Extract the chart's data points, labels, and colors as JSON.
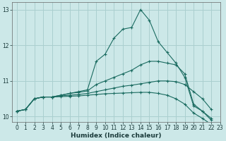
{
  "title": "",
  "xlabel": "Humidex (Indice chaleur)",
  "ylabel": "",
  "bg_color": "#cce8e8",
  "grid_color": "#aacfcf",
  "line_color": "#1a6b60",
  "xlim": [
    -0.5,
    23
  ],
  "ylim": [
    9.85,
    13.2
  ],
  "yticks": [
    10,
    11,
    12,
    13
  ],
  "xticks": [
    0,
    1,
    2,
    3,
    4,
    5,
    6,
    7,
    8,
    9,
    10,
    11,
    12,
    13,
    14,
    15,
    16,
    17,
    18,
    19,
    20,
    21,
    22,
    23
  ],
  "series": [
    {
      "x": [
        0,
        1,
        2,
        3,
        4,
        5,
        6,
        7,
        8,
        9,
        10,
        11,
        12,
        13,
        14,
        15,
        16,
        17,
        18,
        19,
        20,
        21,
        22,
        23
      ],
      "y": [
        10.15,
        10.2,
        10.5,
        10.55,
        10.55,
        10.6,
        10.65,
        10.7,
        10.75,
        11.55,
        11.75,
        12.2,
        12.45,
        12.5,
        13.0,
        12.7,
        12.1,
        11.8,
        11.5,
        11.1,
        10.3,
        10.15,
        9.9,
        null
      ]
    },
    {
      "x": [
        0,
        1,
        2,
        3,
        4,
        5,
        6,
        7,
        8,
        9,
        10,
        11,
        12,
        13,
        14,
        15,
        16,
        17,
        18,
        19,
        20,
        21,
        22,
        23
      ],
      "y": [
        10.15,
        10.2,
        10.5,
        10.55,
        10.55,
        10.6,
        10.65,
        10.68,
        10.72,
        10.9,
        11.0,
        11.1,
        11.2,
        11.3,
        11.45,
        11.55,
        11.55,
        11.5,
        11.45,
        11.2,
        10.35,
        10.15,
        9.95,
        null
      ]
    },
    {
      "x": [
        0,
        1,
        2,
        3,
        4,
        5,
        6,
        7,
        8,
        9,
        10,
        11,
        12,
        13,
        14,
        15,
        16,
        17,
        18,
        19,
        20,
        21,
        22,
        23
      ],
      "y": [
        10.15,
        10.2,
        10.5,
        10.55,
        10.55,
        10.58,
        10.6,
        10.62,
        10.65,
        10.7,
        10.75,
        10.8,
        10.85,
        10.88,
        10.92,
        10.96,
        11.0,
        11.0,
        10.98,
        10.9,
        10.7,
        10.5,
        10.2,
        null
      ]
    },
    {
      "x": [
        0,
        1,
        2,
        3,
        4,
        5,
        6,
        7,
        8,
        9,
        10,
        11,
        12,
        13,
        14,
        15,
        16,
        17,
        18,
        19,
        20,
        21,
        22,
        23
      ],
      "y": [
        10.15,
        10.2,
        10.5,
        10.55,
        10.55,
        10.56,
        10.57,
        10.58,
        10.6,
        10.62,
        10.64,
        10.65,
        10.66,
        10.67,
        10.68,
        10.68,
        10.65,
        10.6,
        10.5,
        10.35,
        10.1,
        9.95,
        9.78,
        null
      ]
    }
  ]
}
